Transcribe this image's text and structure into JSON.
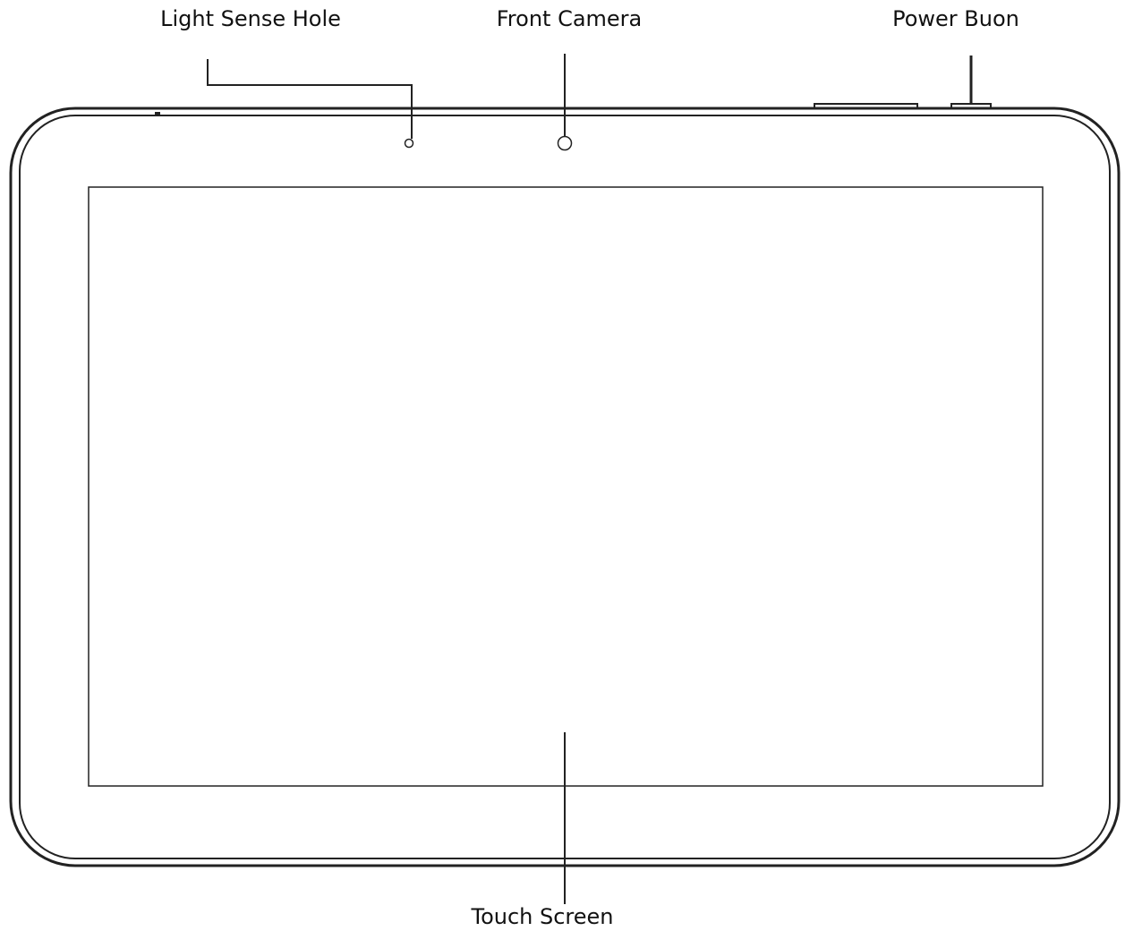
{
  "labels": {
    "light_sense_hole": "Light Sense Hole",
    "front_camera": "Front Camera",
    "power_button": "Power Buon",
    "touch_screen": "Touch Screen"
  }
}
